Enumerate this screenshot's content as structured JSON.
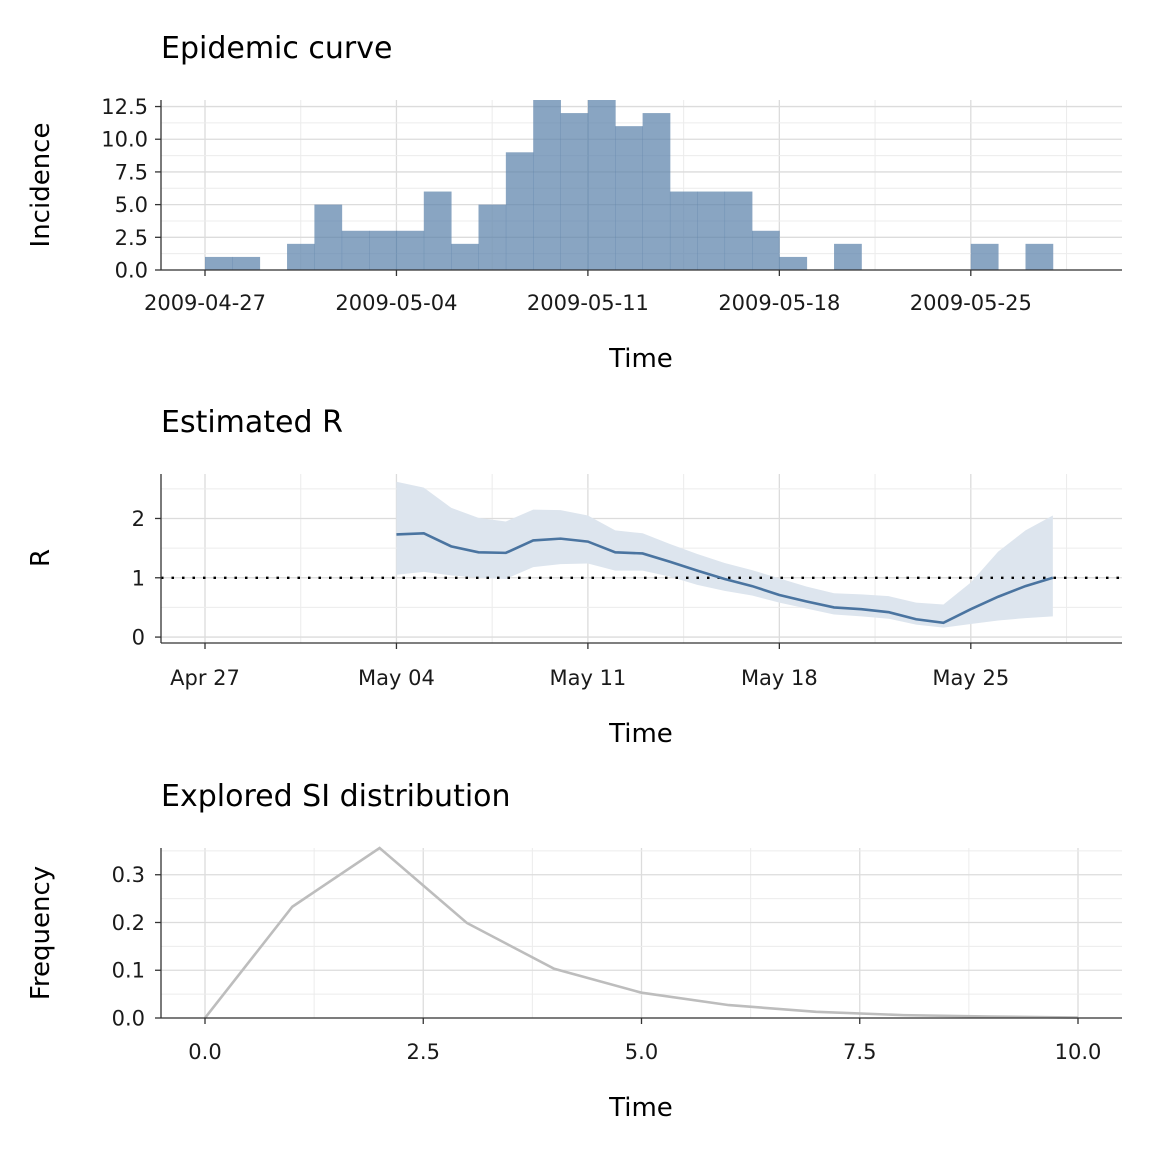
{
  "chart_data": [
    {
      "type": "bar",
      "title": "Epidemic curve",
      "xlabel": "Time",
      "ylabel": "Incidence",
      "bar_color": "#5b82ab",
      "x_ticks": [
        "2009-04-27",
        "2009-05-04",
        "2009-05-11",
        "2009-05-18",
        "2009-05-25"
      ],
      "y_ticks": [
        "0.0",
        "2.5",
        "5.0",
        "7.5",
        "10.0",
        "12.5"
      ],
      "ylim": [
        0,
        13
      ],
      "categories": [
        "2009-04-27",
        "2009-04-28",
        "2009-04-29",
        "2009-04-30",
        "2009-05-01",
        "2009-05-02",
        "2009-05-03",
        "2009-05-04",
        "2009-05-05",
        "2009-05-06",
        "2009-05-07",
        "2009-05-08",
        "2009-05-09",
        "2009-05-10",
        "2009-05-11",
        "2009-05-12",
        "2009-05-13",
        "2009-05-14",
        "2009-05-15",
        "2009-05-16",
        "2009-05-17",
        "2009-05-18",
        "2009-05-19",
        "2009-05-20",
        "2009-05-21",
        "2009-05-22",
        "2009-05-23",
        "2009-05-24",
        "2009-05-25",
        "2009-05-26",
        "2009-05-27",
        "2009-05-28"
      ],
      "values": [
        1,
        1,
        0,
        2,
        5,
        3,
        3,
        3,
        6,
        2,
        5,
        9,
        13,
        12,
        13,
        11,
        12,
        6,
        6,
        6,
        3,
        1,
        0,
        2,
        0,
        0,
        0,
        0,
        2,
        0,
        2,
        0
      ],
      "grid": true
    },
    {
      "type": "line",
      "title": "Estimated R",
      "xlabel": "Time",
      "ylabel": "R",
      "line_color": "#4a74a0",
      "band_color": "#dde5ee",
      "x_ticks": [
        "Apr 27",
        "May 04",
        "May 11",
        "May 18",
        "May 25"
      ],
      "y_ticks": [
        "0",
        "1",
        "2"
      ],
      "ylim": [
        -0.1,
        2.75
      ],
      "reference_line": 1,
      "x": [
        "2009-05-04",
        "2009-05-05",
        "2009-05-06",
        "2009-05-07",
        "2009-05-08",
        "2009-05-09",
        "2009-05-10",
        "2009-05-11",
        "2009-05-12",
        "2009-05-13",
        "2009-05-14",
        "2009-05-15",
        "2009-05-16",
        "2009-05-17",
        "2009-05-18",
        "2009-05-19",
        "2009-05-20",
        "2009-05-21",
        "2009-05-22",
        "2009-05-23",
        "2009-05-24",
        "2009-05-25",
        "2009-05-26",
        "2009-05-27",
        "2009-05-28"
      ],
      "series": [
        {
          "values": [
            1.73,
            1.75,
            1.53,
            1.43,
            1.42,
            1.63,
            1.66,
            1.61,
            1.43,
            1.41,
            1.27,
            1.12,
            0.98,
            0.86,
            0.71,
            0.6,
            0.5,
            0.47,
            0.42,
            0.3,
            0.24,
            0.47,
            0.68,
            0.86,
            1.0
          ]
        }
      ],
      "lower": [
        1.05,
        1.1,
        1.04,
        1.0,
        0.98,
        1.18,
        1.23,
        1.24,
        1.12,
        1.12,
        1.02,
        0.88,
        0.78,
        0.7,
        0.58,
        0.48,
        0.38,
        0.35,
        0.31,
        0.21,
        0.16,
        0.22,
        0.28,
        0.32,
        0.35
      ],
      "upper": [
        2.62,
        2.52,
        2.18,
        2.01,
        1.95,
        2.15,
        2.14,
        2.05,
        1.8,
        1.75,
        1.57,
        1.4,
        1.25,
        1.13,
        0.99,
        0.85,
        0.74,
        0.72,
        0.69,
        0.58,
        0.55,
        0.92,
        1.44,
        1.8,
        2.05
      ],
      "grid": true
    },
    {
      "type": "line",
      "title": "Explored SI distribution",
      "xlabel": "Time",
      "ylabel": "Frequency",
      "line_color": "#bdbdbd",
      "x_ticks": [
        "0.0",
        "2.5",
        "5.0",
        "7.5",
        "10.0"
      ],
      "y_ticks": [
        "0.0",
        "0.1",
        "0.2",
        "0.3"
      ],
      "xlim": [
        -0.25,
        10.5
      ],
      "ylim": [
        0,
        0.356
      ],
      "x": [
        0,
        1,
        2,
        3,
        4,
        5,
        6,
        7,
        8,
        9,
        10
      ],
      "series": [
        {
          "values": [
            0.0,
            0.233,
            0.356,
            0.199,
            0.103,
            0.053,
            0.027,
            0.013,
            0.006,
            0.003,
            0.001
          ]
        }
      ],
      "grid": true
    }
  ]
}
